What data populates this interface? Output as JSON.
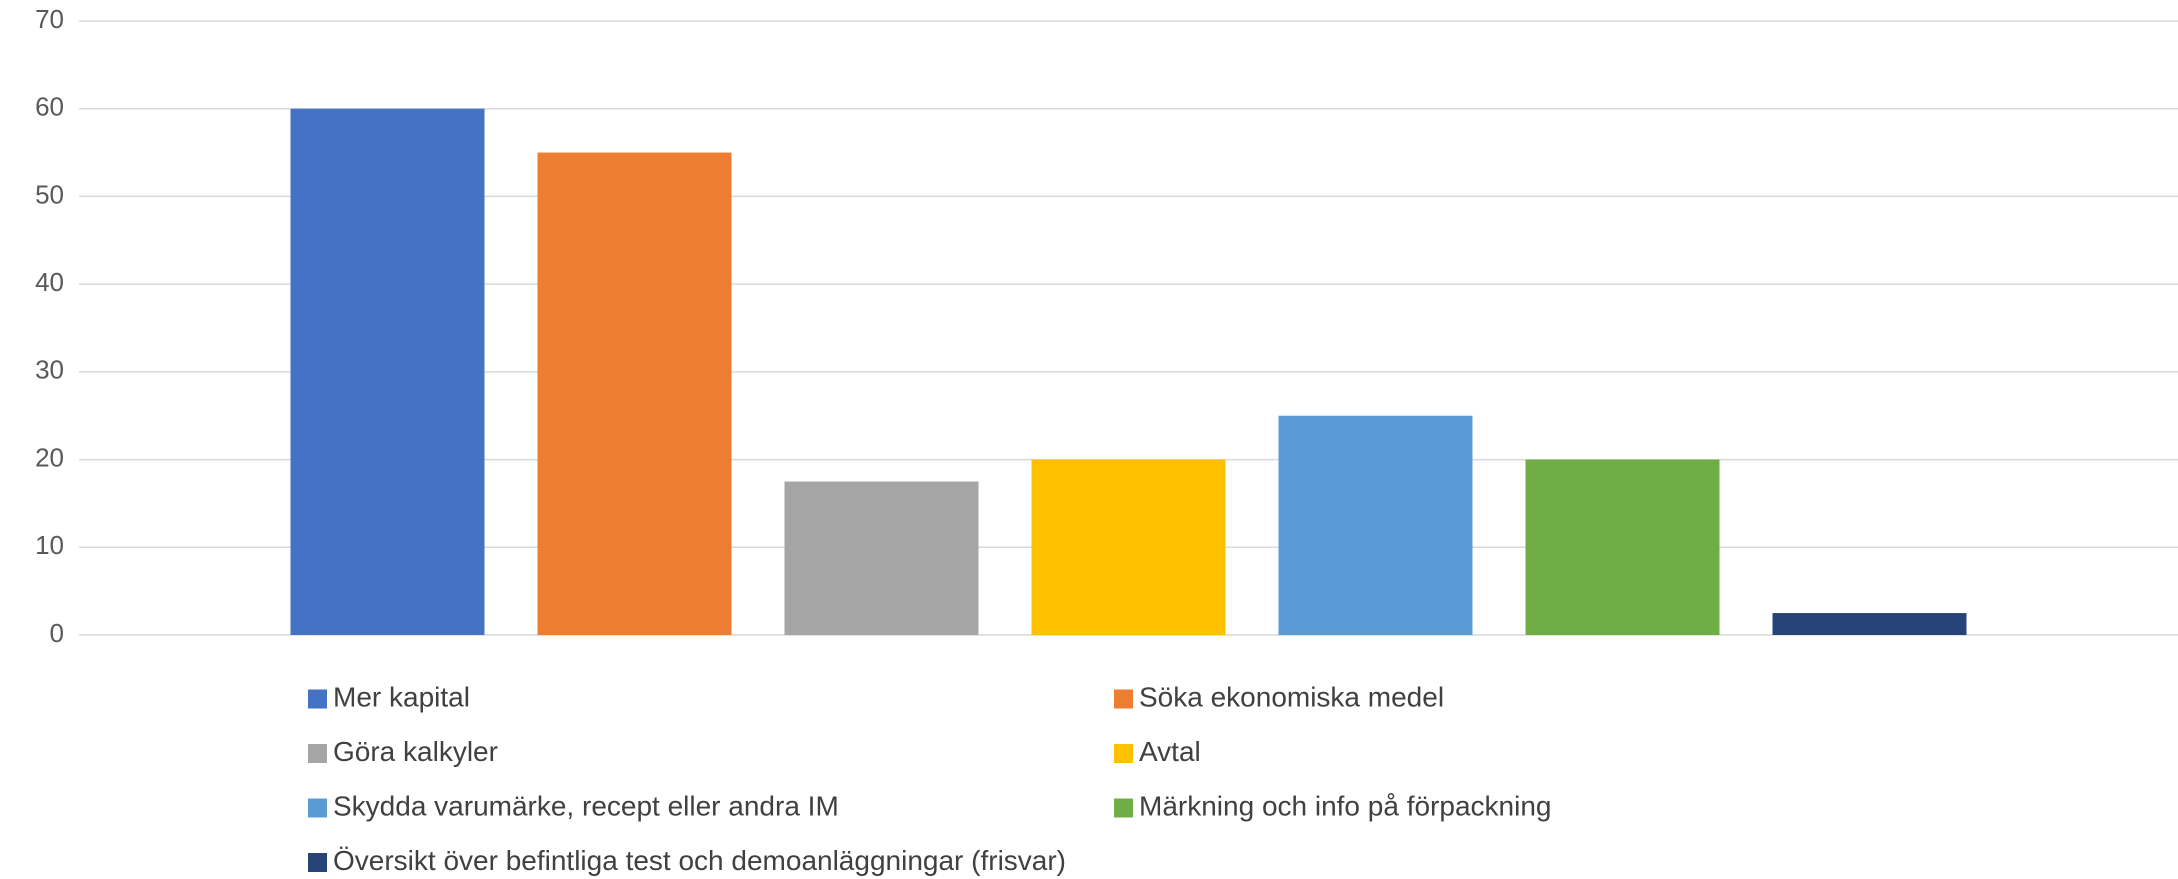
{
  "chart_data": {
    "type": "bar",
    "categories": [
      null
    ],
    "series": [
      {
        "name": "Mer kapital",
        "color": "#4472c4",
        "values": [
          60
        ]
      },
      {
        "name": "Söka ekonomiska medel",
        "color": "#ed7d31",
        "values": [
          55
        ]
      },
      {
        "name": "Göra kalkyler",
        "color": "#a5a5a5",
        "values": [
          17.5
        ]
      },
      {
        "name": "Avtal",
        "color": "#ffc000",
        "values": [
          20
        ]
      },
      {
        "name": "Skydda varumärke, recept eller andra IM",
        "color": "#5b9bd5",
        "values": [
          25
        ]
      },
      {
        "name": "Märkning och info på förpackning",
        "color": "#70ad47",
        "values": [
          20
        ]
      },
      {
        "name": "Översikt över befintliga test och demoanläggningar (frisvar)",
        "color": "#264478",
        "values": [
          2.5
        ]
      }
    ],
    "ylim": [
      0,
      70
    ],
    "yticks": [
      0,
      10,
      20,
      30,
      40,
      50,
      60,
      70
    ],
    "grid": true,
    "legend": "bottom"
  }
}
